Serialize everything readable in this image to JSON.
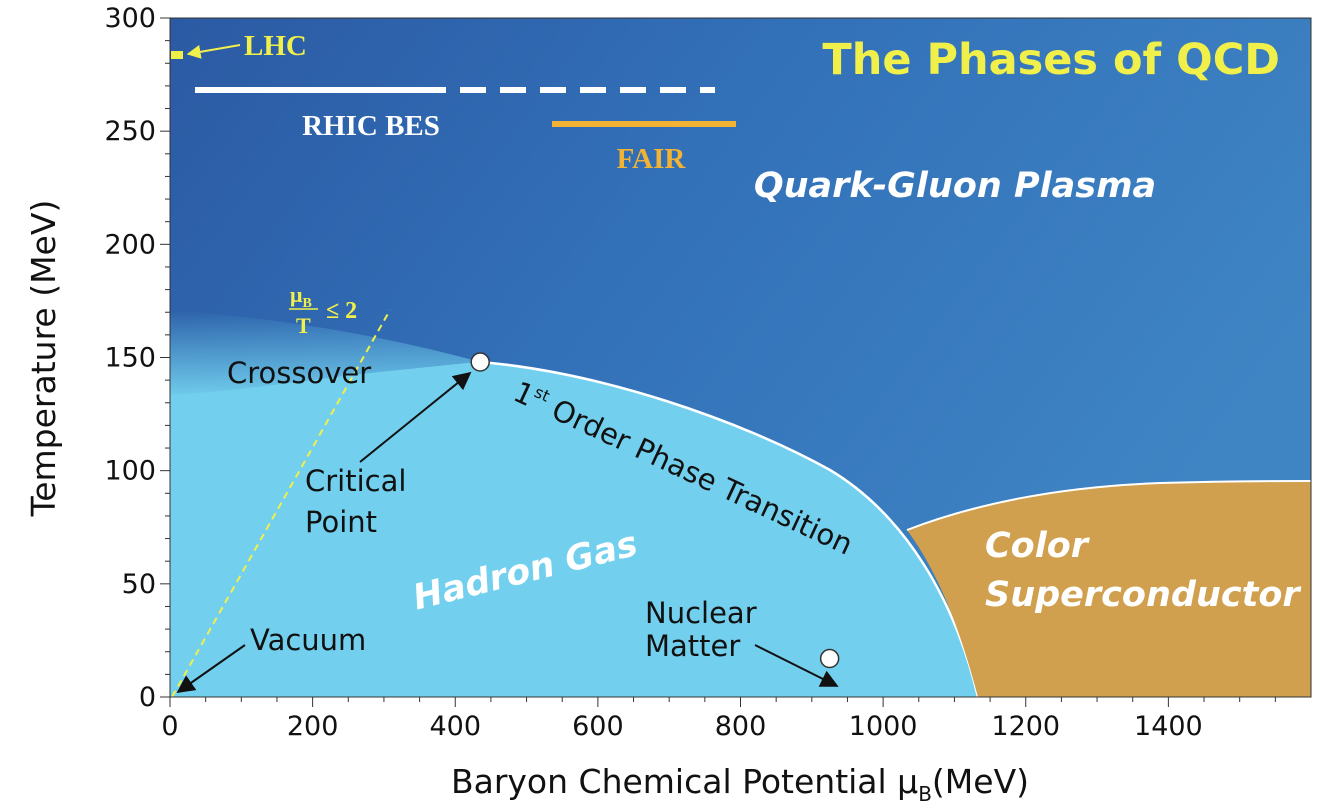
{
  "diagram": {
    "title": "The Phases of QCD",
    "x_axis": {
      "title_main": "Baryon Chemical Potential μ",
      "title_sub": "B",
      "title_unit": "(MeV)",
      "range": [
        0,
        1600
      ],
      "ticks": [
        "0",
        "200",
        "400",
        "600",
        "800",
        "1000",
        "1200",
        "1400"
      ]
    },
    "y_axis": {
      "title": "Temperature (MeV)",
      "range": [
        0,
        300
      ],
      "ticks": [
        "0",
        "50",
        "100",
        "150",
        "200",
        "250",
        "300"
      ]
    },
    "regions": {
      "qgp": "Quark-Gluon Plasma",
      "hadron_gas": "Hadron Gas",
      "color_sc_line1": "Color",
      "color_sc_line2": "Superconductor"
    },
    "experiments": {
      "lhc": "LHC",
      "rhic": "RHIC BES",
      "fair": "FAIR"
    },
    "annotations": {
      "crossover": "Crossover",
      "critical_line1": "Critical",
      "critical_line2": "Point",
      "first_order_sup": "st",
      "first_order_num": "1",
      "first_order_text": " Order Phase Transition",
      "nuclear_line1": "Nuclear",
      "nuclear_line2": "Matter",
      "vacuum": "Vacuum",
      "ratio_num": "μ",
      "ratio_num_sub": "B",
      "ratio_den": "T",
      "ratio_rel": "≤ 2"
    },
    "points": {
      "critical_point": {
        "mu_b": 435,
        "T": 148
      },
      "nuclear_matter": {
        "mu_b": 925,
        "T": 17
      }
    },
    "colors": {
      "qgp": "#3d80c1",
      "qgp_dark": "#2b5ea5",
      "hadron_gas": "#72d0ee",
      "color_superconductor": "#d0a04e",
      "title_yellow": "#f1f04b",
      "fair_orange": "#f2b234",
      "rhic_white": "#ffffff"
    }
  }
}
